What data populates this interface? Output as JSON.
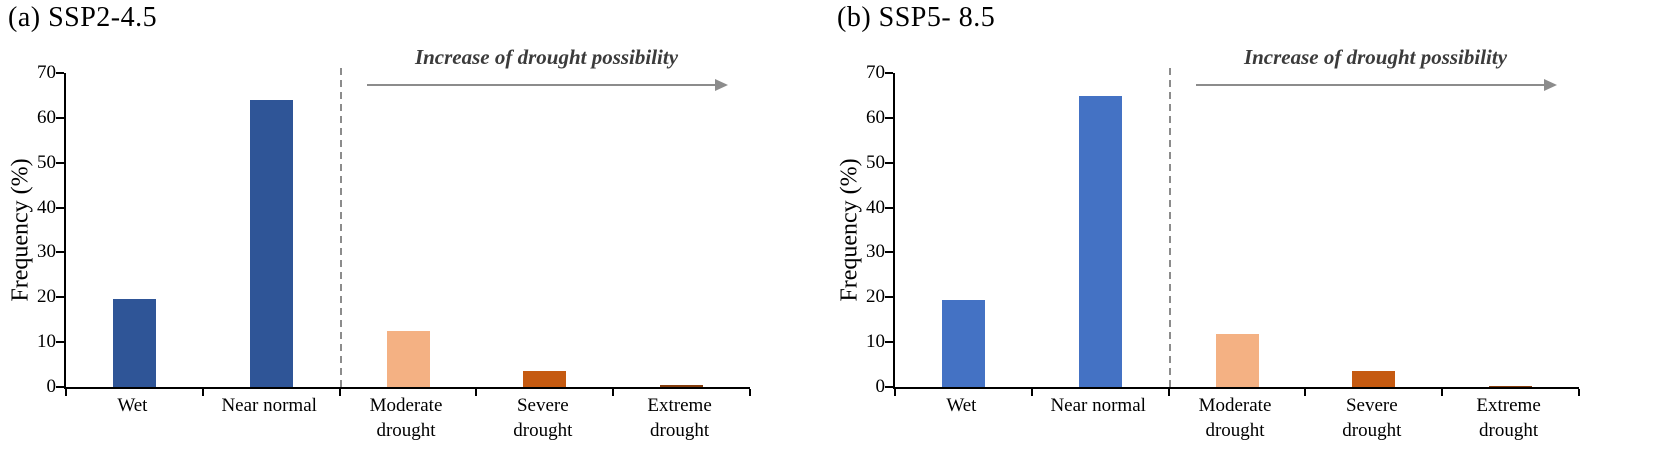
{
  "colors": {
    "axis": "#000000",
    "divider": "#8c8c8c",
    "arrow": "#8c8c8c",
    "annotation_text": "#3b3b3b"
  },
  "chart_data": [
    {
      "type": "bar",
      "title": "(a) SSP2-4.5",
      "ylabel": "Frequency (%)",
      "xlabel": "",
      "ylim": [
        0,
        70
      ],
      "yticks": [
        0,
        10,
        20,
        30,
        40,
        50,
        60,
        70
      ],
      "grid": false,
      "legend": false,
      "categories": [
        "Wet",
        "Near normal",
        "Moderate\ndrought",
        "Severe\ndrought",
        "Extreme\ndrought"
      ],
      "values": [
        19.7,
        64.0,
        12.4,
        3.6,
        0.5
      ],
      "bar_colors": [
        "#2F5597",
        "#2F5597",
        "#F4B183",
        "#C55A11",
        "#843C0C"
      ],
      "annotation": "Increase of drought possibility",
      "divider_after_category": 2
    },
    {
      "type": "bar",
      "title": "(b) SSP5- 8.5",
      "ylabel": "Frequency (%)",
      "xlabel": "",
      "ylim": [
        0,
        70
      ],
      "yticks": [
        0,
        10,
        20,
        30,
        40,
        50,
        60,
        70
      ],
      "grid": false,
      "legend": false,
      "categories": [
        "Wet",
        "Near normal",
        "Moderate\ndrought",
        "Severe\ndrought",
        "Extreme\ndrought"
      ],
      "values": [
        19.5,
        64.9,
        11.8,
        3.5,
        0.3
      ],
      "bar_colors": [
        "#4472C4",
        "#4472C4",
        "#F4B183",
        "#C55A11",
        "#843C0C"
      ],
      "annotation": "Increase of drought possibility",
      "divider_after_category": 2
    }
  ]
}
